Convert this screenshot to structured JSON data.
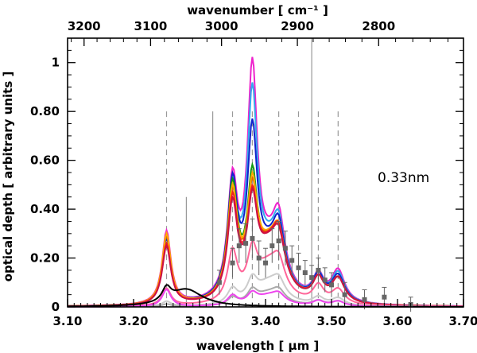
{
  "chart_data": {
    "type": "line",
    "title": "",
    "xlabel": "wavelength [ μm ]",
    "ylabel": "optical depth [ arbitrary units ]",
    "top_xlabel": "wavenumber [ cm⁻¹ ]",
    "annotation": "0.33nm",
    "xlim": [
      3.1,
      3.7
    ],
    "ylim": [
      0,
      1.1
    ],
    "x_ticks": [
      "3.10",
      "3.20",
      "3.30",
      "3.40",
      "3.50",
      "3.60",
      "3.70"
    ],
    "y_ticks": [
      {
        "v": 0,
        "label": "0"
      },
      {
        "v": 0.2,
        "label": "0.20"
      },
      {
        "v": 0.4,
        "label": "0.40"
      },
      {
        "v": 0.6,
        "label": "0.60"
      },
      {
        "v": 0.8,
        "label": "0.80"
      },
      {
        "v": 1.0,
        "label": "1"
      }
    ],
    "top_ticks": [
      {
        "wn": 3200,
        "label": "3200"
      },
      {
        "wn": 3100,
        "label": "3100"
      },
      {
        "wn": 3000,
        "label": "3000"
      },
      {
        "wn": 2900,
        "label": "2900"
      },
      {
        "wn": 2800,
        "label": "2800"
      }
    ],
    "dashed_lines": [
      3.25,
      3.35,
      3.38,
      3.42,
      3.45,
      3.48,
      3.51
    ],
    "dashed_line_color": "#999999",
    "solid_lines": [
      {
        "x": 3.28,
        "h": 0.45
      },
      {
        "x": 3.32,
        "h": 0.8
      },
      {
        "x": 3.47,
        "h": 1.1
      }
    ],
    "series": [
      {
        "name": "magenta",
        "color": "#ee22cc",
        "amps": [
          0.3,
          0.46,
          0.88,
          0.17,
          0.24,
          0.1,
          0.13
        ]
      },
      {
        "name": "light blue",
        "color": "#33aaee",
        "amps": [
          0.27,
          0.43,
          0.78,
          0.17,
          0.22,
          0.1,
          0.12
        ]
      },
      {
        "name": "blue",
        "color": "#1122cc",
        "amps": [
          0.27,
          0.46,
          0.63,
          0.17,
          0.21,
          0.1,
          0.11
        ]
      },
      {
        "name": "green",
        "color": "#119911",
        "amps": [
          0.28,
          0.45,
          0.44,
          0.18,
          0.18,
          0.09,
          0.1
        ]
      },
      {
        "name": "dark orange",
        "color": "#dd6600",
        "amps": [
          0.28,
          0.42,
          0.38,
          0.2,
          0.17,
          0.09,
          0.1
        ]
      },
      {
        "name": "orange",
        "color": "#ffaa00",
        "amps": [
          0.29,
          0.43,
          0.4,
          0.2,
          0.17,
          0.09,
          0.1
        ]
      },
      {
        "name": "red",
        "color": "#ee2222",
        "amps": [
          0.25,
          0.4,
          0.35,
          0.2,
          0.17,
          0.09,
          0.1
        ]
      },
      {
        "name": "crimson",
        "color": "#cc1144",
        "amps": [
          0.24,
          0.38,
          0.34,
          0.2,
          0.16,
          0.09,
          0.1
        ]
      },
      {
        "name": "pink",
        "color": "#ff6699",
        "amps": [
          0.07,
          0.2,
          0.17,
          0.15,
          0.1,
          0.07,
          0.06
        ]
      },
      {
        "name": "light gray",
        "color": "#cccccc",
        "amps": [
          0.02,
          0.06,
          0.08,
          0.09,
          0.06,
          0.03,
          0.03
        ]
      },
      {
        "name": "gray",
        "color": "#aaaaaa",
        "amps": [
          0.01,
          0.03,
          0.05,
          0.05,
          0.04,
          0.02,
          0.02
        ]
      },
      {
        "name": "faint magenta",
        "color": "#ee44ee",
        "amps": [
          0.07,
          0.04,
          0.04,
          0.04,
          0.03,
          0.02,
          0.02
        ]
      },
      {
        "name": "black",
        "color": "#000000",
        "amps": [
          0.055,
          0.0,
          0.0,
          0.0,
          0.0,
          0.0,
          0.0
        ],
        "peak2": {
          "x": 3.28,
          "a": 0.07
        }
      }
    ],
    "observed": {
      "name": "observed spectrum",
      "color": "#666666",
      "points": [
        {
          "x": 3.33,
          "y": 0.1,
          "e": 0.05
        },
        {
          "x": 3.35,
          "y": 0.18,
          "e": 0.06
        },
        {
          "x": 3.36,
          "y": 0.25,
          "e": 0.07
        },
        {
          "x": 3.37,
          "y": 0.26,
          "e": 0.08
        },
        {
          "x": 3.38,
          "y": 0.28,
          "e": 0.08
        },
        {
          "x": 3.39,
          "y": 0.2,
          "e": 0.07
        },
        {
          "x": 3.4,
          "y": 0.18,
          "e": 0.06
        },
        {
          "x": 3.41,
          "y": 0.25,
          "e": 0.07
        },
        {
          "x": 3.42,
          "y": 0.27,
          "e": 0.08
        },
        {
          "x": 3.43,
          "y": 0.24,
          "e": 0.07
        },
        {
          "x": 3.44,
          "y": 0.19,
          "e": 0.06
        },
        {
          "x": 3.45,
          "y": 0.16,
          "e": 0.06
        },
        {
          "x": 3.46,
          "y": 0.14,
          "e": 0.05
        },
        {
          "x": 3.47,
          "y": 0.12,
          "e": 0.05
        },
        {
          "x": 3.48,
          "y": 0.15,
          "e": 0.05
        },
        {
          "x": 3.49,
          "y": 0.11,
          "e": 0.05
        },
        {
          "x": 3.5,
          "y": 0.09,
          "e": 0.05
        },
        {
          "x": 3.52,
          "y": 0.05,
          "e": 0.05
        },
        {
          "x": 3.55,
          "y": 0.03,
          "e": 0.04
        },
        {
          "x": 3.58,
          "y": 0.04,
          "e": 0.04
        },
        {
          "x": 3.62,
          "y": 0.01,
          "e": 0.03
        }
      ]
    }
  }
}
